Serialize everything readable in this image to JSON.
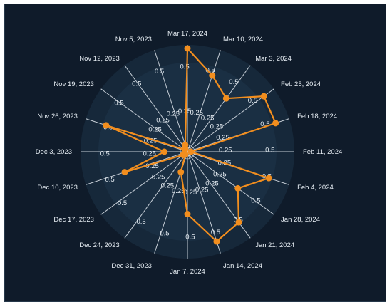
{
  "chart_data": {
    "type": "radar",
    "title": "",
    "radial_ticks": [
      "0.25",
      "0.5"
    ],
    "rmax": 0.6,
    "categories": [
      "Mar 17, 2024",
      "Mar 10, 2024",
      "Mar 3, 2024",
      "Feb 25, 2024",
      "Feb 18, 2024",
      "Feb 11, 2024",
      "Feb 4, 2024",
      "Jan 28, 2024",
      "Jan 21, 2024",
      "Jan 14, 2024",
      "Jan 7, 2024",
      "Dec 31, 2023",
      "Dec 24, 2023",
      "Dec 17, 2023",
      "Dec 10, 2023",
      "Dec 3, 2023",
      "Nov 26, 2023",
      "Nov 19, 2023",
      "Nov 12, 2023",
      "Nov 5, 2023"
    ],
    "series": [
      {
        "color": "#f28e1e",
        "values": [
          0.58,
          0.45,
          0.37,
          0.53,
          0.52,
          0.02,
          0.48,
          0.35,
          0.49,
          0.53,
          0.35,
          0.12,
          0.02,
          0.03,
          0.37,
          0.13,
          0.48,
          0.02,
          0.02,
          0.04
        ]
      }
    ],
    "grid_color": "#d7dee6",
    "background": "#0f1b2a"
  }
}
